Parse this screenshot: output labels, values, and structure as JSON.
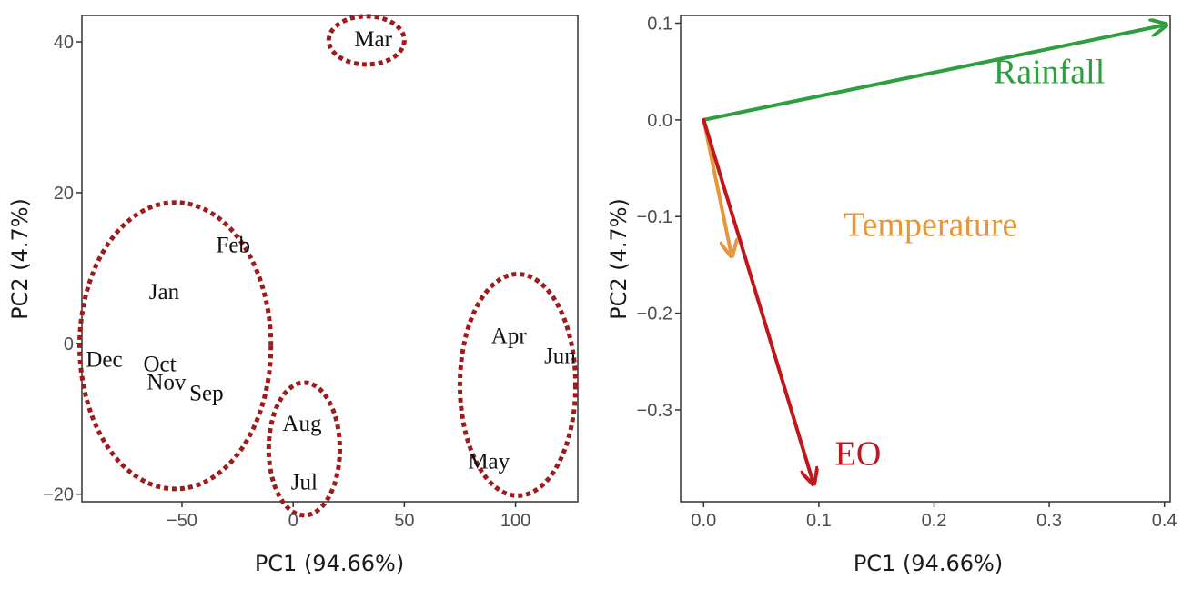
{
  "chart_data": [
    {
      "type": "scatter",
      "title": "",
      "xlabel": "PC1 (94.66%)",
      "ylabel": "PC2 (4.7%)",
      "xlim": [
        -95,
        128
      ],
      "ylim": [
        -21,
        43.5
      ],
      "xticks": [
        -50,
        0,
        50,
        100
      ],
      "yticks": [
        -20,
        0,
        20,
        40
      ],
      "xtick_labels": [
        "−50",
        "0",
        "50",
        "100"
      ],
      "ytick_labels": [
        "−20",
        "0",
        "20",
        "40"
      ],
      "grid": false,
      "points": [
        {
          "label": "Mar",
          "x": 36,
          "y": 40.5
        },
        {
          "label": "Feb",
          "x": -27,
          "y": 13.2
        },
        {
          "label": "Jan",
          "x": -58,
          "y": 7
        },
        {
          "label": "Dec",
          "x": -85,
          "y": -2
        },
        {
          "label": "Oct",
          "x": -60,
          "y": -2.6
        },
        {
          "label": "Nov",
          "x": -57,
          "y": -5
        },
        {
          "label": "Sep",
          "x": -39,
          "y": -6.5
        },
        {
          "label": "Aug",
          "x": 4,
          "y": -10.5
        },
        {
          "label": "Jul",
          "x": 5,
          "y": -18.3
        },
        {
          "label": "Apr",
          "x": 97,
          "y": 1.1
        },
        {
          "label": "Jun",
          "x": 120,
          "y": -1.5
        },
        {
          "label": "May",
          "x": 88,
          "y": -15.5
        }
      ],
      "clusters": [
        {
          "cx": 33,
          "cy": 40.2,
          "rx": 17,
          "ry": 3.2
        },
        {
          "cx": -53,
          "cy": -0.3,
          "rx": 43,
          "ry": 19
        },
        {
          "cx": 5,
          "cy": -14,
          "rx": 16,
          "ry": 8.8
        },
        {
          "cx": 101,
          "cy": -5.5,
          "rx": 26,
          "ry": 14.7
        }
      ],
      "cluster_color": "#9e1b1b"
    },
    {
      "type": "line",
      "title": "",
      "xlabel": "PC1 (94.66%)",
      "ylabel": "PC2 (4.7%)",
      "xlim": [
        -0.02,
        0.405
      ],
      "ylim": [
        -0.395,
        0.108
      ],
      "xticks": [
        0.0,
        0.1,
        0.2,
        0.3,
        0.4
      ],
      "yticks": [
        0.1,
        0.0,
        -0.1,
        -0.2,
        -0.3
      ],
      "xtick_labels": [
        "0.0",
        "0.1",
        "0.2",
        "0.3",
        "0.4"
      ],
      "ytick_labels": [
        "0.1",
        "0.0",
        "−0.1",
        "−0.2",
        "−0.3"
      ],
      "grid": false,
      "vectors": [
        {
          "name": "Rainfall",
          "x": 0.4,
          "y": 0.098,
          "color": "#2e9e3e",
          "label_x": 0.3,
          "label_y": 0.038
        },
        {
          "name": "Temperature",
          "x": 0.024,
          "y": -0.139,
          "color": "#e8963c",
          "label_x": 0.197,
          "label_y": -0.12
        },
        {
          "name": "EO",
          "x": 0.095,
          "y": -0.375,
          "color": "#c0161c",
          "label_x": 0.134,
          "label_y": -0.357
        }
      ]
    }
  ]
}
